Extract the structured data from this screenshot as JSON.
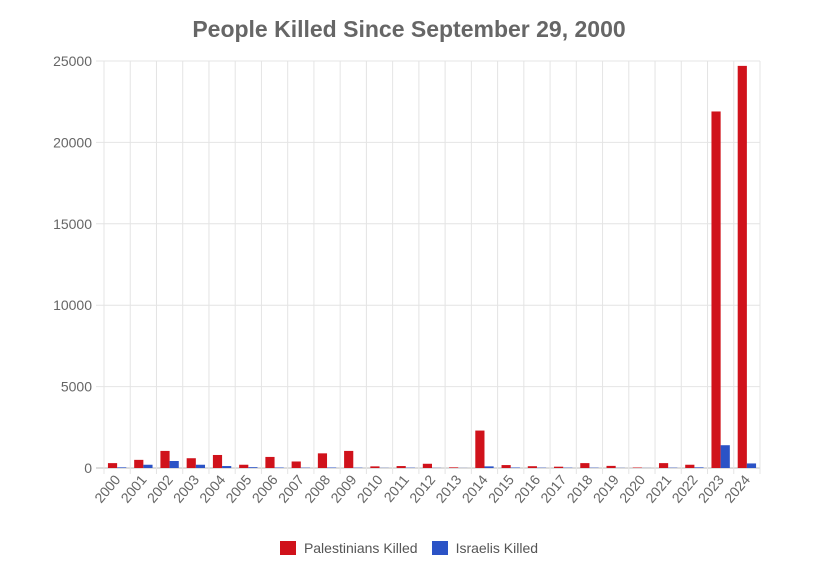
{
  "chart_data": {
    "type": "bar",
    "title": "People Killed Since September 29, 2000",
    "categories": [
      "2000",
      "2001",
      "2002",
      "2003",
      "2004",
      "2005",
      "2006",
      "2007",
      "2008",
      "2009",
      "2010",
      "2011",
      "2012",
      "2013",
      "2014",
      "2015",
      "2016",
      "2017",
      "2018",
      "2019",
      "2020",
      "2021",
      "2022",
      "2023",
      "2024"
    ],
    "series": [
      {
        "name": "Palestinians Killed",
        "color": "#d0121b",
        "values": [
          300,
          500,
          1050,
          600,
          800,
          200,
          680,
          400,
          900,
          1050,
          100,
          120,
          260,
          40,
          2300,
          180,
          110,
          80,
          300,
          130,
          30,
          300,
          200,
          21900,
          24700
        ]
      },
      {
        "name": "Israelis Killed",
        "color": "#2b53c6",
        "values": [
          40,
          200,
          430,
          200,
          120,
          50,
          30,
          20,
          30,
          20,
          10,
          20,
          10,
          5,
          100,
          30,
          20,
          20,
          20,
          10,
          5,
          20,
          40,
          1400,
          280
        ]
      }
    ],
    "yticks": [
      0,
      5000,
      10000,
      15000,
      20000,
      25000
    ],
    "ylim": [
      0,
      25000
    ],
    "grid": true,
    "legend_position": "bottom"
  }
}
